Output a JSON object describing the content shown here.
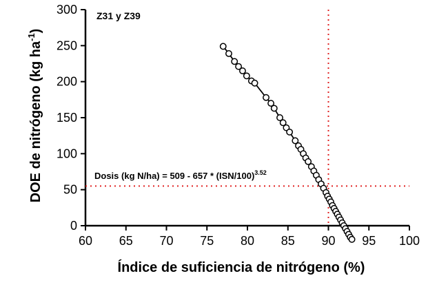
{
  "chart_data": {
    "type": "scatter",
    "panel_label": "Z31 y Z39",
    "xlabel": "Índice de suficiencia de nitrógeno (%)",
    "ylabel_main": "DOE de nitrógeno (kg ha",
    "ylabel_sup": "-1",
    "ylabel_close": ")",
    "equation_main": "Dosis (kg N/ha) = 509 - 657 * (ISN/100)",
    "equation_exp": "3.52",
    "xlim": [
      60,
      100
    ],
    "ylim": [
      0,
      300
    ],
    "xticks": [
      "60",
      "65",
      "70",
      "75",
      "80",
      "85",
      "90",
      "95",
      "100"
    ],
    "yticks": [
      "0",
      "50",
      "100",
      "150",
      "200",
      "250",
      "300"
    ],
    "reference_lines": {
      "x": 90,
      "y": 55
    },
    "grid": false,
    "colors": {
      "points": "#000000",
      "fit_line": "#000000",
      "reference": "#e02020"
    },
    "x": [
      77.0,
      77.7,
      78.4,
      78.9,
      79.4,
      79.9,
      80.5,
      80.9,
      82.3,
      82.9,
      83.3,
      84.0,
      84.4,
      84.8,
      85.2,
      85.9,
      86.3,
      86.6,
      86.9,
      87.2,
      87.5,
      87.9,
      88.2,
      88.5,
      88.8,
      89.1,
      89.4,
      89.7,
      89.9,
      90.1,
      90.3,
      90.5,
      90.7,
      90.9,
      91.1,
      91.3,
      91.5,
      91.7,
      91.9,
      92.1,
      92.3,
      92.5,
      92.7,
      92.9
    ],
    "y": [
      249,
      239,
      228,
      221,
      215,
      208,
      201,
      198,
      178,
      170,
      163,
      150,
      143,
      136,
      130,
      118,
      111,
      106,
      100,
      94,
      89,
      82,
      76,
      70,
      64,
      58,
      52,
      46,
      41,
      37,
      33,
      28,
      24,
      20,
      16,
      12,
      8,
      4,
      0,
      -4,
      -8,
      -12,
      -16,
      -19
    ]
  }
}
